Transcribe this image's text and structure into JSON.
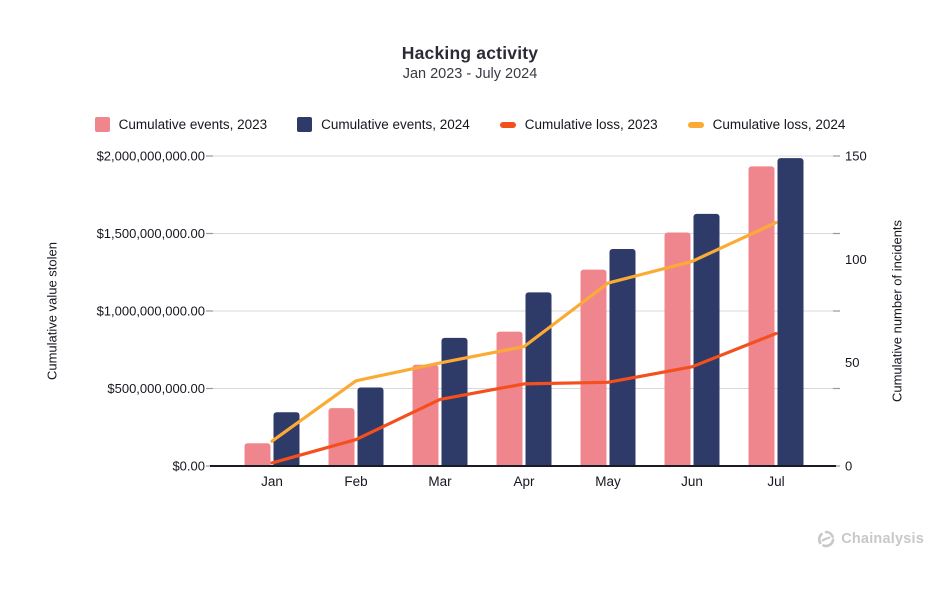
{
  "title": "Hacking activity",
  "subtitle": "Jan 2023 - July 2024",
  "branding": {
    "logo_text": "Chainalysis",
    "logo_color": "#c8c8c8"
  },
  "colors": {
    "events_2023": "#f0868d",
    "events_2024": "#2e3a67",
    "loss_2023": "#f4501e",
    "loss_2024": "#fbab35",
    "gridline": "#d9d9d9",
    "axis_line": "#1b1b26",
    "tick_mark": "#9a9a9a",
    "text": "#16161f"
  },
  "chart_data": {
    "type": "bar+line combo",
    "title": "Hacking activity",
    "subtitle": "Jan 2023 - July 2024",
    "grid": true,
    "legend_position": "top",
    "categories": [
      "Jan",
      "Feb",
      "Mar",
      "Apr",
      "May",
      "Jun",
      "Jul"
    ],
    "left_axis": {
      "label": "Cumulative value stolen",
      "min": 0,
      "max": 2000000000,
      "ticks": [
        {
          "label": "$2,000,000,000.00",
          "value": 2000000000
        },
        {
          "label": "$1,500,000,000.00",
          "value": 1500000000
        },
        {
          "label": "$1,000,000,000.00",
          "value": 1000000000
        },
        {
          "label": "$500,000,000.00",
          "value": 500000000
        },
        {
          "label": "$0.00",
          "value": 0
        }
      ]
    },
    "right_axis": {
      "label": "Cumulative number of incidents",
      "min": 0,
      "max": 150,
      "ticks": [
        {
          "label": "150",
          "value": 150
        },
        {
          "label": "100",
          "value": 100
        },
        {
          "label": "50",
          "value": 50
        },
        {
          "label": "0",
          "value": 0
        }
      ]
    },
    "gridline_values_left_axis": [
      500000000,
      1000000000,
      1500000000,
      2000000000
    ],
    "series": [
      {
        "name": "Cumulative events, 2023",
        "type": "bar",
        "axis": "right",
        "color": "#f0868d",
        "values": [
          11,
          28,
          49,
          65,
          95,
          113,
          145
        ]
      },
      {
        "name": "Cumulative events, 2024",
        "type": "bar",
        "axis": "right",
        "color": "#2e3a67",
        "values": [
          26,
          38,
          62,
          84,
          105,
          122,
          149
        ]
      },
      {
        "name": "Cumulative loss, 2023",
        "type": "line",
        "axis": "left",
        "color": "#f4501e",
        "values": [
          20000000,
          170000000,
          430000000,
          530000000,
          540000000,
          640000000,
          855000000
        ]
      },
      {
        "name": "Cumulative loss, 2024",
        "type": "line",
        "axis": "left",
        "color": "#fbab35",
        "values": [
          160000000,
          550000000,
          665000000,
          770000000,
          1180000000,
          1320000000,
          1570000000
        ]
      }
    ]
  }
}
